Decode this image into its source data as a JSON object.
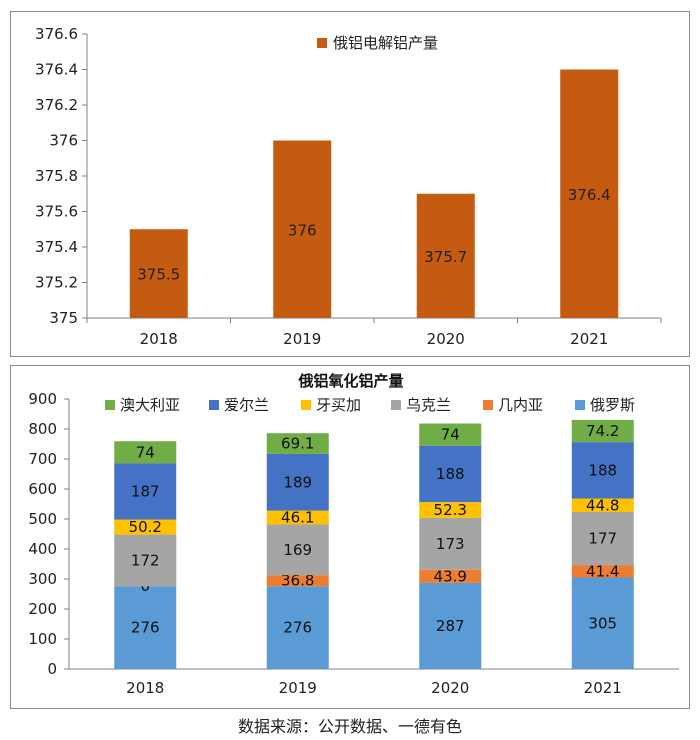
{
  "source_note": "数据来源：公开数据、一德有色",
  "colors": {
    "primary_bar": "#c55a11",
    "series": [
      "#70ad47",
      "#4472c4",
      "#ffc000",
      "#a5a5a5",
      "#ed7d31",
      "#5b9bd5"
    ]
  },
  "chart_data": [
    {
      "type": "bar",
      "title": "",
      "categories": [
        "2018",
        "2019",
        "2020",
        "2021"
      ],
      "series": [
        {
          "name": "俄铝电解铝产量",
          "values": [
            375.5,
            376,
            375.7,
            376.4
          ]
        }
      ],
      "data_labels": [
        "375.5",
        "376",
        "375.7",
        "376.4"
      ],
      "ylim": [
        375,
        376.6
      ],
      "yticks": [
        "375",
        "375.2",
        "375.4",
        "375.6",
        "375.8",
        "376",
        "376.2",
        "376.4",
        "376.6"
      ],
      "ytick_values": [
        375,
        375.2,
        375.4,
        375.6,
        375.8,
        376,
        376.2,
        376.4,
        376.6
      ],
      "grid": false,
      "legend_position": "top"
    },
    {
      "type": "bar",
      "stacked": true,
      "title": "俄铝氧化铝产量",
      "categories": [
        "2018",
        "2019",
        "2020",
        "2021"
      ],
      "legend_order": [
        "澳大利亚",
        "爱尔兰",
        "牙买加",
        "乌克兰",
        "几内亚",
        "俄罗斯"
      ],
      "series": [
        {
          "name": "俄罗斯",
          "values": [
            276,
            276,
            287,
            305
          ],
          "labels": [
            "276",
            "276",
            "287",
            "305"
          ]
        },
        {
          "name": "几内亚",
          "values": [
            0,
            36.8,
            43.9,
            41.4
          ],
          "labels": [
            "0",
            "36.8",
            "43.9",
            "41.4"
          ]
        },
        {
          "name": "乌克兰",
          "values": [
            172,
            169,
            173,
            177
          ],
          "labels": [
            "172",
            "169",
            "173",
            "177"
          ]
        },
        {
          "name": "牙买加",
          "values": [
            50.2,
            46.1,
            52.3,
            44.8
          ],
          "labels": [
            "50.2",
            "46.1",
            "52.3",
            "44.8"
          ]
        },
        {
          "name": "爱尔兰",
          "values": [
            187,
            189,
            188,
            188
          ],
          "labels": [
            "187",
            "189",
            "188",
            "188"
          ]
        },
        {
          "name": "澳大利亚",
          "values": [
            74,
            69.1,
            74,
            74.2
          ],
          "labels": [
            "74",
            "69.1",
            "74",
            "74.2"
          ]
        }
      ],
      "ylim": [
        0,
        900
      ],
      "yticks": [
        "0",
        "100",
        "200",
        "300",
        "400",
        "500",
        "600",
        "700",
        "800",
        "900"
      ],
      "ytick_values": [
        0,
        100,
        200,
        300,
        400,
        500,
        600,
        700,
        800,
        900
      ],
      "grid": false,
      "legend_position": "top"
    }
  ]
}
